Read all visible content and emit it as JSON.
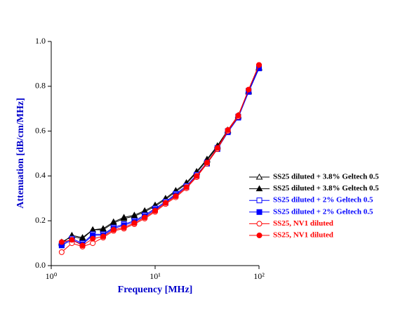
{
  "chart_data": {
    "type": "line",
    "xlabel": "Frequency [MHz]",
    "ylabel": "Attenuation [dB/cm/MHz]",
    "log_x": true,
    "xlim": [
      1,
      100
    ],
    "ylim": [
      0,
      1.0
    ],
    "xticks": [
      {
        "value": 1,
        "label": "10⁰"
      },
      {
        "value": 10,
        "label": "10¹"
      },
      {
        "value": 100,
        "label": "10²"
      }
    ],
    "yticks": [
      {
        "value": 0,
        "label": "0.0"
      },
      {
        "value": 0.2,
        "label": "0.2"
      },
      {
        "value": 0.4,
        "label": "0.4"
      },
      {
        "value": 0.6,
        "label": "0.6"
      },
      {
        "value": 0.8,
        "label": "0.8"
      },
      {
        "value": 1.0,
        "label": "1.0"
      }
    ],
    "x": [
      1.26,
      1.58,
      2,
      2.51,
      3.16,
      3.98,
      5.01,
      6.31,
      7.94,
      10,
      12.6,
      15.8,
      20,
      25.1,
      31.6,
      39.8,
      50.1,
      63.1,
      79.4,
      100
    ],
    "series": [
      {
        "name": "SS25 diluted + 3.8% Geltech 0.5",
        "color": "#000000",
        "marker": "triangle-open",
        "values": [
          0.1,
          0.135,
          0.125,
          0.16,
          0.165,
          0.195,
          0.215,
          0.225,
          0.245,
          0.27,
          0.3,
          0.335,
          0.37,
          0.42,
          0.475,
          0.535,
          0.605,
          0.67,
          0.78,
          0.885
        ]
      },
      {
        "name": "SS25 diluted + 3.8% Geltech 0.5",
        "color": "#000000",
        "marker": "triangle",
        "values": [
          0.105,
          0.13,
          0.12,
          0.16,
          0.16,
          0.19,
          0.21,
          0.22,
          0.24,
          0.265,
          0.295,
          0.33,
          0.365,
          0.415,
          0.47,
          0.53,
          0.6,
          0.665,
          0.775,
          0.88
        ]
      },
      {
        "name": "SS25 diluted + 2% Geltech 0.5",
        "color": "#0000ff",
        "marker": "square-open",
        "values": [
          0.095,
          0.12,
          0.1,
          0.14,
          0.14,
          0.17,
          0.185,
          0.2,
          0.225,
          0.255,
          0.285,
          0.32,
          0.355,
          0.405,
          0.46,
          0.525,
          0.6,
          0.665,
          0.78,
          0.885
        ]
      },
      {
        "name": "SS25 diluted + 2% Geltech 0.5",
        "color": "#0000ff",
        "marker": "square",
        "values": [
          0.09,
          0.115,
          0.095,
          0.135,
          0.135,
          0.165,
          0.18,
          0.195,
          0.22,
          0.25,
          0.28,
          0.315,
          0.35,
          0.4,
          0.455,
          0.52,
          0.595,
          0.66,
          0.775,
          0.88
        ]
      },
      {
        "name": "SS25, NV1 diluted",
        "color": "#ff0000",
        "marker": "circle-open",
        "values": [
          0.06,
          0.1,
          0.085,
          0.1,
          0.125,
          0.155,
          0.165,
          0.185,
          0.21,
          0.24,
          0.275,
          0.305,
          0.345,
          0.395,
          0.455,
          0.52,
          0.6,
          0.665,
          0.785,
          0.895
        ]
      },
      {
        "name": "SS25, NV1 diluted",
        "color": "#ff0000",
        "marker": "circle",
        "values": [
          0.105,
          0.115,
          0.09,
          0.12,
          0.13,
          0.16,
          0.17,
          0.19,
          0.215,
          0.245,
          0.28,
          0.31,
          0.35,
          0.4,
          0.46,
          0.525,
          0.605,
          0.67,
          0.785,
          0.895
        ]
      }
    ]
  }
}
